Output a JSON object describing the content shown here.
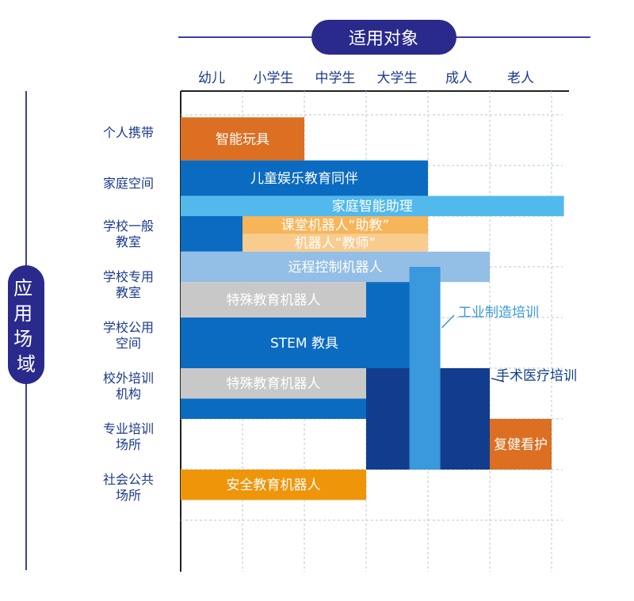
{
  "chart_data": {
    "type": "table",
    "title": "适用对象",
    "side_title": "应用场域",
    "columns": [
      "幼儿",
      "小学生",
      "中学生",
      "大学生",
      "成人",
      "老人"
    ],
    "rows": [
      [
        "个人携带"
      ],
      [
        "家庭空间"
      ],
      [
        "学校一般",
        "教室"
      ],
      [
        "学校专用",
        "教室"
      ],
      [
        "学校公用",
        "空间"
      ],
      [
        "校外培训",
        "机构"
      ],
      [
        "专业培训",
        "场所"
      ],
      [
        "社会公共",
        "场所"
      ]
    ],
    "bars": [
      {
        "label": "智能玩具",
        "col_start": 0,
        "col_end": 2,
        "row_start": 0.05,
        "row_end": 0.9,
        "color": "#dc6f22",
        "text_color": "#ffffff"
      },
      {
        "label": "儿童娱乐教育同伴",
        "col_start": 0,
        "col_end": 4,
        "row_start": 0.9,
        "row_end": 1.6,
        "color": "#0a6bc1",
        "text_color": "#ffffff"
      },
      {
        "label": "家庭智能助理",
        "col_start": 0,
        "col_end": 6.2,
        "row_start": 1.6,
        "row_end": 2.0,
        "color": "#52b9ec",
        "text_color": "#ffffff"
      },
      {
        "label": "",
        "col_start": 0,
        "col_end": 1,
        "row_start": 2.0,
        "row_end": 2.7,
        "color": "#0a6bc1",
        "text_color": "#ffffff"
      },
      {
        "label": "课堂机器人“助教”",
        "col_start": 1,
        "col_end": 4,
        "row_start": 2.0,
        "row_end": 2.35,
        "color": "#f7b55a",
        "text_color": "#ffffff"
      },
      {
        "label": "机器人“教师”",
        "col_start": 1,
        "col_end": 4,
        "row_start": 2.35,
        "row_end": 2.7,
        "color": "#f8cc8f",
        "text_color": "#ffffff"
      },
      {
        "label": "远程控制机器人",
        "col_start": 0,
        "col_end": 5,
        "row_start": 2.7,
        "row_end": 3.3,
        "color": "#93bee5",
        "text_color": "#ffffff"
      },
      {
        "label": "特殊教育机器人",
        "col_start": 0,
        "col_end": 3,
        "row_start": 3.3,
        "row_end": 4.0,
        "color": "#c8c8c8",
        "text_color": "#ffffff"
      },
      {
        "label": "",
        "col_start": 3,
        "col_end": 4,
        "row_start": 3.3,
        "row_end": 4.0,
        "color": "#0a6bc1",
        "text_color": "#ffffff"
      },
      {
        "label": "STEM 教具",
        "col_start": 0,
        "col_end": 4,
        "row_start": 4.0,
        "row_end": 5.0,
        "color": "#0a6bc1",
        "text_color": "#ffffff"
      },
      {
        "label": "特殊教育机器人",
        "col_start": 0,
        "col_end": 3,
        "row_start": 5.0,
        "row_end": 5.6,
        "color": "#c8c8c8",
        "text_color": "#ffffff"
      },
      {
        "label": "",
        "col_start": 0,
        "col_end": 3,
        "row_start": 5.6,
        "row_end": 6.0,
        "color": "#0a6bc1",
        "text_color": "#ffffff"
      },
      {
        "label": "",
        "col_start": 3,
        "col_end": 5,
        "row_start": 5.0,
        "row_end": 7.0,
        "color": "#123d8e",
        "text_color": "#ffffff"
      },
      {
        "label": "",
        "col_start": 3.7,
        "col_end": 4.2,
        "row_start": 3.0,
        "row_end": 7.0,
        "color": "#3a98dc",
        "text_color": "#ffffff"
      },
      {
        "label": "复健看护",
        "col_start": 5,
        "col_end": 6,
        "row_start": 6.0,
        "row_end": 7.0,
        "color": "#dc6f22",
        "text_color": "#ffffff"
      },
      {
        "label": "安全教育机器人",
        "col_start": 0,
        "col_end": 3,
        "row_start": 7.0,
        "row_end": 7.6,
        "color": "#ef950a",
        "text_color": "#ffffff"
      }
    ],
    "callouts": [
      {
        "label": "工业制造培训",
        "color": "#3a98dc"
      },
      {
        "label": "手术医疗培训",
        "color": "#123d8e"
      }
    ]
  }
}
